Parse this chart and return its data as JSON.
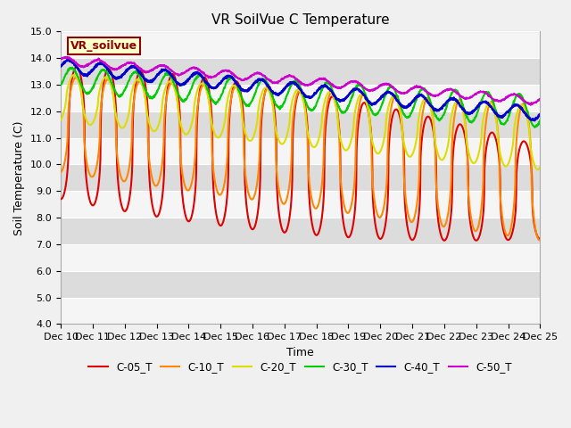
{
  "title": "VR SoilVue C Temperature",
  "xlabel": "Time",
  "ylabel": "Soil Temperature (C)",
  "ylim": [
    4.0,
    15.0
  ],
  "xlim": [
    0,
    15
  ],
  "yticks": [
    4.0,
    5.0,
    6.0,
    7.0,
    8.0,
    9.0,
    10.0,
    11.0,
    12.0,
    13.0,
    14.0,
    15.0
  ],
  "xtick_labels": [
    "Dec 10",
    "Dec 11",
    "Dec 12",
    "Dec 13",
    "Dec 14",
    "Dec 15",
    "Dec 16",
    "Dec 17",
    "Dec 18",
    "Dec 19",
    "Dec 20",
    "Dec 21",
    "Dec 22",
    "Dec 23",
    "Dec 24",
    "Dec 25"
  ],
  "legend_box_label": "VR_soilvue",
  "legend_box_facecolor": "#ffffcc",
  "legend_box_edgecolor": "#8b0000",
  "plot_bg_color": "#e8e8e8",
  "fig_bg_color": "#f0f0f0",
  "series": [
    {
      "label": "C-05_T",
      "color": "#dd0000",
      "lw": 1.5
    },
    {
      "label": "C-10_T",
      "color": "#ff8800",
      "lw": 1.5
    },
    {
      "label": "C-20_T",
      "color": "#dddd00",
      "lw": 1.5
    },
    {
      "label": "C-30_T",
      "color": "#00cc00",
      "lw": 1.5
    },
    {
      "label": "C-40_T",
      "color": "#0000cc",
      "lw": 1.8
    },
    {
      "label": "C-50_T",
      "color": "#cc00cc",
      "lw": 1.5
    }
  ],
  "band_colors": [
    "#ffffff",
    "#d4d4d4"
  ],
  "grid_color": "#ffffff",
  "title_fontsize": 11,
  "axis_label_fontsize": 9,
  "tick_fontsize": 8
}
